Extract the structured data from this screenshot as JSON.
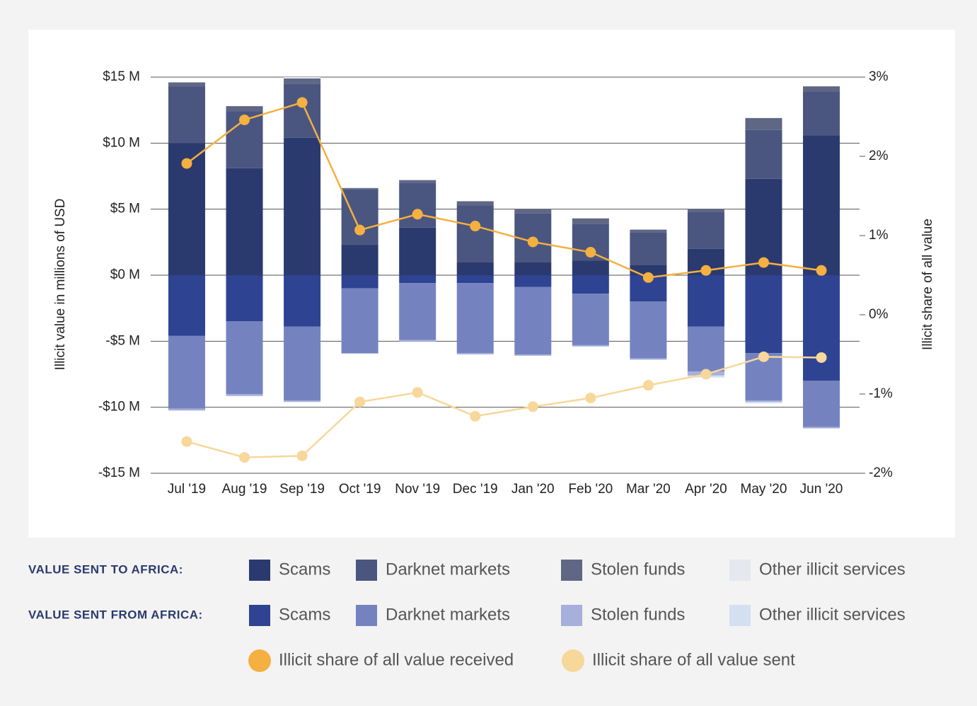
{
  "chart_data": {
    "type": "bar",
    "categories": [
      "Jul '19",
      "Aug '19",
      "Sep '19",
      "Oct '19",
      "Nov '19",
      "Dec '19",
      "Jan '20",
      "Feb '20",
      "Mar '20",
      "Apr '20",
      "May '20",
      "Jun '20"
    ],
    "ylabel": "Illicit value in millions of USD",
    "y2label": "Illicit share of all value",
    "ylim": [
      -15,
      15
    ],
    "yticks": [
      {
        "value": 15,
        "label": "$15 M"
      },
      {
        "value": 10,
        "label": "$10 M"
      },
      {
        "value": 5,
        "label": "$5 M"
      },
      {
        "value": 0,
        "label": "$0 M"
      },
      {
        "value": -5,
        "label": "-$5 M"
      },
      {
        "value": -10,
        "label": "-$10 M"
      },
      {
        "value": -15,
        "label": "-$15 M"
      }
    ],
    "y2lim": [
      -2,
      3
    ],
    "y2ticks": [
      {
        "value": 3,
        "label": "3%"
      },
      {
        "value": 2,
        "label": "2%"
      },
      {
        "value": 1,
        "label": "1%"
      },
      {
        "value": 0,
        "label": "0%"
      },
      {
        "value": -1,
        "label": "-1%"
      },
      {
        "value": -2,
        "label": "-2%"
      }
    ],
    "grid": true,
    "groups": [
      {
        "name": "VALUE SENT TO AFRICA:",
        "series": [
          {
            "name": "Scams",
            "color": "#2b3a6e",
            "values": [
              10.0,
              8.1,
              10.4,
              2.3,
              3.6,
              1.0,
              1.0,
              1.1,
              0.75,
              2.0,
              7.3,
              10.6
            ]
          },
          {
            "name": "Darknet markets",
            "color": "#4a5680",
            "values": [
              4.3,
              4.3,
              4.1,
              4.2,
              3.4,
              4.3,
              3.7,
              2.8,
              2.5,
              2.8,
              3.7,
              3.3
            ]
          },
          {
            "name": "Stolen funds",
            "color": "#5f6785",
            "values": [
              0.3,
              0.4,
              0.4,
              0.1,
              0.2,
              0.3,
              0.3,
              0.4,
              0.2,
              0.2,
              0.9,
              0.4
            ]
          },
          {
            "name": "Other illicit services",
            "color": "#e6e8ef",
            "values": [
              0,
              0,
              0.1,
              0,
              0,
              0,
              0,
              0,
              0,
              0,
              0,
              0
            ]
          }
        ]
      },
      {
        "name": "VALUE SENT FROM AFRICA:",
        "series": [
          {
            "name": "Scams",
            "color": "#2e4392",
            "values": [
              -4.6,
              -3.5,
              -3.9,
              -1.0,
              -0.6,
              -0.6,
              -0.9,
              -1.4,
              -2.0,
              -3.9,
              -5.9,
              -8.0
            ]
          },
          {
            "name": "Darknet markets",
            "color": "#7483c0",
            "values": [
              -5.5,
              -5.5,
              -5.6,
              -4.9,
              -4.3,
              -5.3,
              -5.1,
              -3.9,
              -4.3,
              -3.4,
              -3.6,
              -3.5
            ]
          },
          {
            "name": "Stolen funds",
            "color": "#a6b0da",
            "values": [
              -0.15,
              -0.15,
              -0.1,
              -0.05,
              -0.15,
              -0.1,
              -0.1,
              -0.1,
              -0.1,
              -0.3,
              -0.1,
              -0.1
            ]
          },
          {
            "name": "Other illicit services",
            "color": "#d3e0f2",
            "values": [
              0,
              0,
              0,
              0,
              0,
              0,
              0,
              0,
              0,
              -0.15,
              -0.1,
              0
            ]
          }
        ]
      }
    ],
    "series": [
      {
        "name": "Illicit share of all value received",
        "type": "line",
        "axis": "y2",
        "color": "#f4b040",
        "values": [
          1.91,
          2.46,
          2.68,
          1.07,
          1.27,
          1.12,
          0.92,
          0.79,
          0.47,
          0.56,
          0.66,
          0.56
        ]
      },
      {
        "name": "Illicit share of all value sent",
        "type": "line",
        "axis": "y2",
        "color": "#f8d79a",
        "values": [
          -1.6,
          -1.8,
          -1.78,
          -1.1,
          -0.98,
          -1.28,
          -1.16,
          -1.05,
          -0.89,
          -0.75,
          -0.53,
          -0.54
        ]
      }
    ]
  }
}
